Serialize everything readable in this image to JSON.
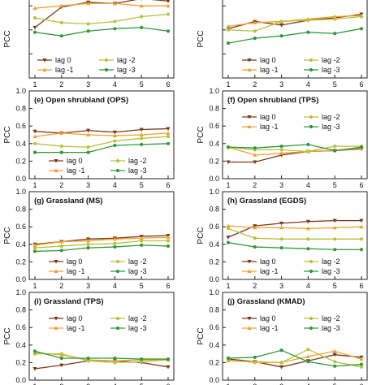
{
  "chart_data": [
    {
      "type": "line",
      "title": "",
      "ylabel": "PCC",
      "x": [
        1,
        2,
        3,
        4,
        5,
        6
      ],
      "ylim": [
        0,
        1.0
      ],
      "ticks_shown": [],
      "legend_position": "bottom-left",
      "series": [
        {
          "name": "lag 0",
          "values": [
            0.42,
            0.59,
            0.63,
            0.62,
            0.66,
            0.64
          ]
        },
        {
          "name": "lag -1",
          "values": [
            0.58,
            0.6,
            0.62,
            0.62,
            0.6,
            0.6
          ]
        },
        {
          "name": "lag -2",
          "values": [
            0.5,
            0.46,
            0.45,
            0.47,
            0.51,
            0.53
          ]
        },
        {
          "name": "lag -3",
          "values": [
            0.38,
            0.35,
            0.39,
            0.41,
            0.42,
            0.39
          ]
        }
      ]
    },
    {
      "type": "line",
      "title": "",
      "ylabel": "PCC",
      "x": [
        1,
        2,
        3,
        4,
        5,
        6
      ],
      "ylim": [
        0,
        1.0
      ],
      "ticks_shown": [],
      "legend_position": "bottom-right",
      "series": [
        {
          "name": "lag 0",
          "values": [
            0.41,
            0.47,
            0.44,
            0.48,
            0.5,
            0.53
          ]
        },
        {
          "name": "lag -1",
          "values": [
            0.43,
            0.46,
            0.47,
            0.49,
            0.51,
            0.52
          ]
        },
        {
          "name": "lag -2",
          "values": [
            0.4,
            0.39,
            0.47,
            0.48,
            0.49,
            0.51
          ]
        },
        {
          "name": "lag -3",
          "values": [
            0.29,
            0.33,
            0.35,
            0.38,
            0.37,
            0.41
          ]
        }
      ]
    },
    {
      "type": "line",
      "title": "(e)  Open shrubland (OPS)",
      "ylabel": "PCC",
      "x": [
        1,
        2,
        3,
        4,
        5,
        6
      ],
      "ylim": [
        0,
        1.0
      ],
      "ticks_shown": [
        "1.0",
        "0.8",
        "0.6",
        "0.4",
        "0.2",
        "0.0"
      ],
      "legend_position": "bottom-right",
      "series": [
        {
          "name": "lag 0",
          "values": [
            0.54,
            0.52,
            0.55,
            0.53,
            0.56,
            0.57
          ]
        },
        {
          "name": "lag -1",
          "values": [
            0.48,
            0.52,
            0.5,
            0.49,
            0.5,
            0.52
          ]
        },
        {
          "name": "lag -2",
          "values": [
            0.4,
            0.37,
            0.36,
            0.43,
            0.46,
            0.48
          ]
        },
        {
          "name": "lag -3",
          "values": [
            0.3,
            0.3,
            0.3,
            0.38,
            0.39,
            0.4
          ]
        }
      ]
    },
    {
      "type": "line",
      "title": "(f)  Open shrubland (TPS)",
      "ylabel": "PCC",
      "x": [
        1,
        2,
        3,
        4,
        5,
        6
      ],
      "ylim": [
        0,
        1.0
      ],
      "ticks_shown": [
        "1.0",
        "0.8",
        "0.6",
        "0.4",
        "0.2",
        "0.0"
      ],
      "legend_position": "top-right",
      "series": [
        {
          "name": "lag 0",
          "values": [
            0.19,
            0.19,
            0.27,
            0.31,
            0.32,
            0.34
          ]
        },
        {
          "name": "lag -1",
          "values": [
            0.36,
            0.27,
            0.29,
            0.31,
            0.32,
            0.35
          ]
        },
        {
          "name": "lag -2",
          "values": [
            0.36,
            0.33,
            0.33,
            0.31,
            0.37,
            0.37
          ]
        },
        {
          "name": "lag -3",
          "values": [
            0.36,
            0.35,
            0.37,
            0.39,
            0.32,
            0.36
          ]
        }
      ]
    },
    {
      "type": "line",
      "title": "(g)  Grassland (MS)",
      "ylabel": "PCC",
      "x": [
        1,
        2,
        3,
        4,
        5,
        6
      ],
      "ylim": [
        0,
        1.0
      ],
      "ticks_shown": [
        "1.0",
        "0.8",
        "0.6",
        "0.4",
        "0.2",
        "0.0"
      ],
      "legend_position": "bottom-right",
      "series": [
        {
          "name": "lag 0",
          "values": [
            0.4,
            0.43,
            0.46,
            0.47,
            0.49,
            0.5
          ]
        },
        {
          "name": "lag -1",
          "values": [
            0.39,
            0.43,
            0.44,
            0.46,
            0.47,
            0.48
          ]
        },
        {
          "name": "lag -2",
          "values": [
            0.36,
            0.38,
            0.4,
            0.41,
            0.44,
            0.44
          ]
        },
        {
          "name": "lag -3",
          "values": [
            0.32,
            0.33,
            0.36,
            0.37,
            0.39,
            0.38
          ]
        }
      ]
    },
    {
      "type": "line",
      "title": "(h)  Grassland (EGDS)",
      "ylabel": "PCC",
      "x": [
        1,
        2,
        3,
        4,
        5,
        6
      ],
      "ylim": [
        0,
        1.0
      ],
      "ticks_shown": [
        "1.0",
        "0.8",
        "0.6",
        "0.4",
        "0.2",
        "0.0"
      ],
      "legend_position": "bottom-right",
      "series": [
        {
          "name": "lag 0",
          "values": [
            0.48,
            0.61,
            0.64,
            0.66,
            0.67,
            0.67
          ]
        },
        {
          "name": "lag -1",
          "values": [
            0.61,
            0.59,
            0.59,
            0.58,
            0.59,
            0.6
          ]
        },
        {
          "name": "lag -2",
          "values": [
            0.58,
            0.47,
            0.46,
            0.46,
            0.46,
            0.46
          ]
        },
        {
          "name": "lag -3",
          "values": [
            0.42,
            0.37,
            0.36,
            0.35,
            0.34,
            0.34
          ]
        }
      ]
    },
    {
      "type": "line",
      "title": "(i)  Grassland (TPS)",
      "ylabel": "PCC",
      "x": [
        1,
        2,
        3,
        4,
        5,
        6
      ],
      "ylim": [
        0,
        1.0
      ],
      "ticks_shown": [
        "1.0",
        "0.8",
        "0.6",
        "0.4",
        "0.2",
        "0.0"
      ],
      "legend_position": "top-right",
      "series": [
        {
          "name": "lag 0",
          "values": [
            0.13,
            0.17,
            0.22,
            0.22,
            0.2,
            0.15
          ]
        },
        {
          "name": "lag -1",
          "values": [
            0.31,
            0.29,
            0.23,
            0.22,
            0.23,
            0.23
          ]
        },
        {
          "name": "lag -2",
          "values": [
            0.3,
            0.3,
            0.22,
            0.2,
            0.21,
            0.23
          ]
        },
        {
          "name": "lag -3",
          "values": [
            0.33,
            0.25,
            0.25,
            0.25,
            0.24,
            0.24
          ]
        }
      ]
    },
    {
      "type": "line",
      "title": "(j)  Grassland (KMAD)",
      "ylabel": "PCC",
      "x": [
        1,
        2,
        3,
        4,
        5,
        6
      ],
      "ylim": [
        0,
        1.0
      ],
      "ticks_shown": [
        "1.0",
        "0.8",
        "0.6",
        "0.4",
        "0.2",
        "0.0"
      ],
      "legend_position": "top-right",
      "series": [
        {
          "name": "lag 0",
          "values": [
            0.24,
            0.21,
            0.15,
            0.22,
            0.29,
            0.26
          ]
        },
        {
          "name": "lag -1",
          "values": [
            0.22,
            0.21,
            0.2,
            0.27,
            0.33,
            0.24
          ]
        },
        {
          "name": "lag -2",
          "values": [
            0.23,
            0.2,
            0.2,
            0.35,
            0.21,
            0.15
          ]
        },
        {
          "name": "lag -3",
          "values": [
            0.25,
            0.26,
            0.34,
            0.21,
            0.16,
            0.18
          ]
        }
      ]
    }
  ],
  "series_style": [
    {
      "color": "#7a3a1a",
      "marker": "tri-down"
    },
    {
      "color": "#f0a030",
      "marker": "tri-up"
    },
    {
      "color": "#b9c23a",
      "marker": "circle"
    },
    {
      "color": "#2e9a3a",
      "marker": "circle"
    }
  ]
}
